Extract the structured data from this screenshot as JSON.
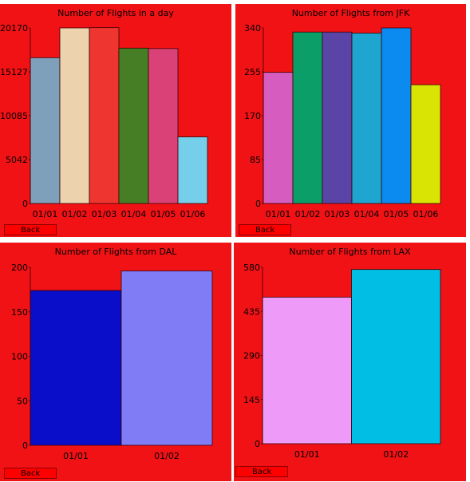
{
  "panels": [
    {
      "title": "Number of Flights in a day",
      "back_label": "Back"
    },
    {
      "title": "Number of Flights from JFK",
      "back_label": "Back"
    },
    {
      "title": "Number of Flights from DAL",
      "back_label": "Back"
    },
    {
      "title": "Number of Flights from LAX",
      "back_label": "Back"
    }
  ],
  "chart_data": [
    {
      "type": "bar",
      "title": "Number of Flights in a day",
      "categories": [
        "01/01",
        "01/02",
        "01/03",
        "01/04",
        "01/05",
        "01/06"
      ],
      "values": [
        16750,
        20170,
        20200,
        17850,
        17800,
        7650
      ],
      "yticks": [
        0,
        5042,
        10085,
        15127,
        20170
      ],
      "ylim": [
        0,
        20170
      ],
      "colors": [
        "#7fa0bb",
        "#ecd3ae",
        "#ef3530",
        "#457e25",
        "#da4277",
        "#76cfea"
      ]
    },
    {
      "type": "bar",
      "title": "Number of Flights from JFK",
      "categories": [
        "01/01",
        "01/02",
        "01/03",
        "01/04",
        "01/05",
        "01/06"
      ],
      "values": [
        254,
        332,
        332,
        330,
        340,
        230
      ],
      "yticks": [
        0,
        85,
        170,
        255,
        340
      ],
      "ylim": [
        0,
        340
      ],
      "colors": [
        "#d65cc0",
        "#0c9e69",
        "#5a45a6",
        "#1ea6d0",
        "#0b8af0",
        "#d9e404"
      ]
    },
    {
      "type": "bar",
      "title": "Number of Flights from DAL",
      "categories": [
        "01/01",
        "01/02"
      ],
      "values": [
        174,
        196
      ],
      "yticks": [
        0,
        50,
        100,
        150,
        200
      ],
      "ylim": [
        0,
        200
      ],
      "colors": [
        "#0a0ec8",
        "#7f7cf6"
      ]
    },
    {
      "type": "bar",
      "title": "Number of Flights from LAX",
      "categories": [
        "01/01",
        "01/02"
      ],
      "values": [
        482,
        573
      ],
      "yticks": [
        0,
        145,
        290,
        435,
        580
      ],
      "ylim": [
        0,
        580
      ],
      "colors": [
        "#ee9af9",
        "#00bee4"
      ]
    }
  ]
}
